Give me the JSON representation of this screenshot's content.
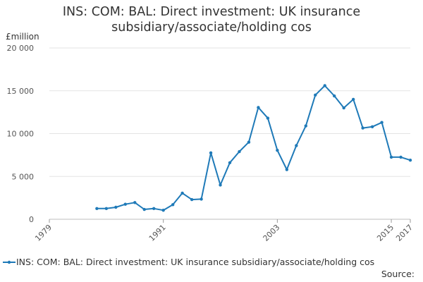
{
  "chart_data": {
    "type": "line",
    "title": "INS: COM: BAL: Direct investment: UK insurance subsidiary/associate/holding cos",
    "title_lines": [
      "INS: COM: BAL: Direct investment: UK insurance",
      "subsidiary/associate/holding cos"
    ],
    "ylabel": "£million",
    "xlabel": "",
    "xlim": [
      1979,
      2017
    ],
    "ylim": [
      0,
      20000
    ],
    "yticks": [
      0,
      5000,
      10000,
      15000,
      20000
    ],
    "ytick_labels": [
      "0",
      "5 000",
      "10 000",
      "15 000",
      "20 000"
    ],
    "xticks": [
      1979,
      1991,
      2003,
      2015,
      2017
    ],
    "grid": true,
    "legend_position": "bottom",
    "series": [
      {
        "name": "INS: COM: BAL: Direct investment: UK insurance subsidiary/associate/holding cos",
        "color": "#1f7ab8",
        "x": [
          1984,
          1985,
          1986,
          1987,
          1988,
          1989,
          1990,
          1991,
          1992,
          1993,
          1994,
          1995,
          1996,
          1997,
          1998,
          1999,
          2000,
          2001,
          2002,
          2003,
          2004,
          2005,
          2006,
          2007,
          2008,
          2009,
          2010,
          2011,
          2012,
          2013,
          2014,
          2015,
          2016,
          2017
        ],
        "y": [
          1250,
          1250,
          1400,
          1750,
          1950,
          1150,
          1250,
          1050,
          1700,
          3050,
          2300,
          2350,
          7750,
          4000,
          6600,
          7900,
          9000,
          13050,
          11800,
          8050,
          5800,
          8600,
          10900,
          14500,
          15600,
          14400,
          13000,
          14000,
          10650,
          10800,
          11300,
          7250,
          7250,
          6900
        ]
      }
    ]
  },
  "source_label": "Source:"
}
